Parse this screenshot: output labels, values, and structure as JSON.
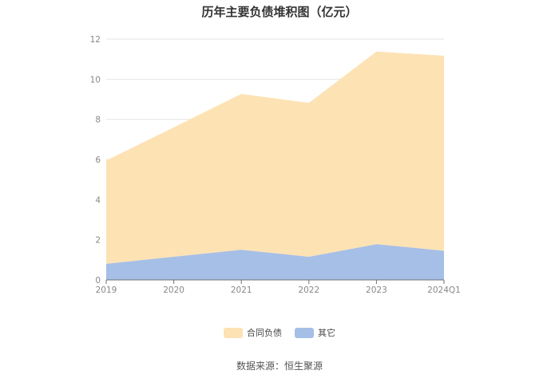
{
  "chart_data": {
    "type": "area",
    "stacked": true,
    "title": "历年主要负债堆积图（亿元）",
    "xlabel": "",
    "ylabel": "",
    "categories": [
      "2019",
      "2020",
      "2021",
      "2022",
      "2023",
      "2024Q1"
    ],
    "ylim": [
      0,
      12
    ],
    "yticks": [
      "0",
      "2",
      "4",
      "6",
      "8",
      "10",
      "12"
    ],
    "grid": true,
    "legend_position": "bottom",
    "series": [
      {
        "name": "合同负债",
        "color": "#fde2b4",
        "values": [
          5.15,
          6.45,
          7.77,
          7.67,
          9.6,
          9.72
        ]
      },
      {
        "name": "其它",
        "color": "#a6bfe6",
        "values": [
          0.8,
          1.15,
          1.5,
          1.15,
          1.78,
          1.45
        ]
      }
    ]
  },
  "source": "数据来源：恒生聚源"
}
